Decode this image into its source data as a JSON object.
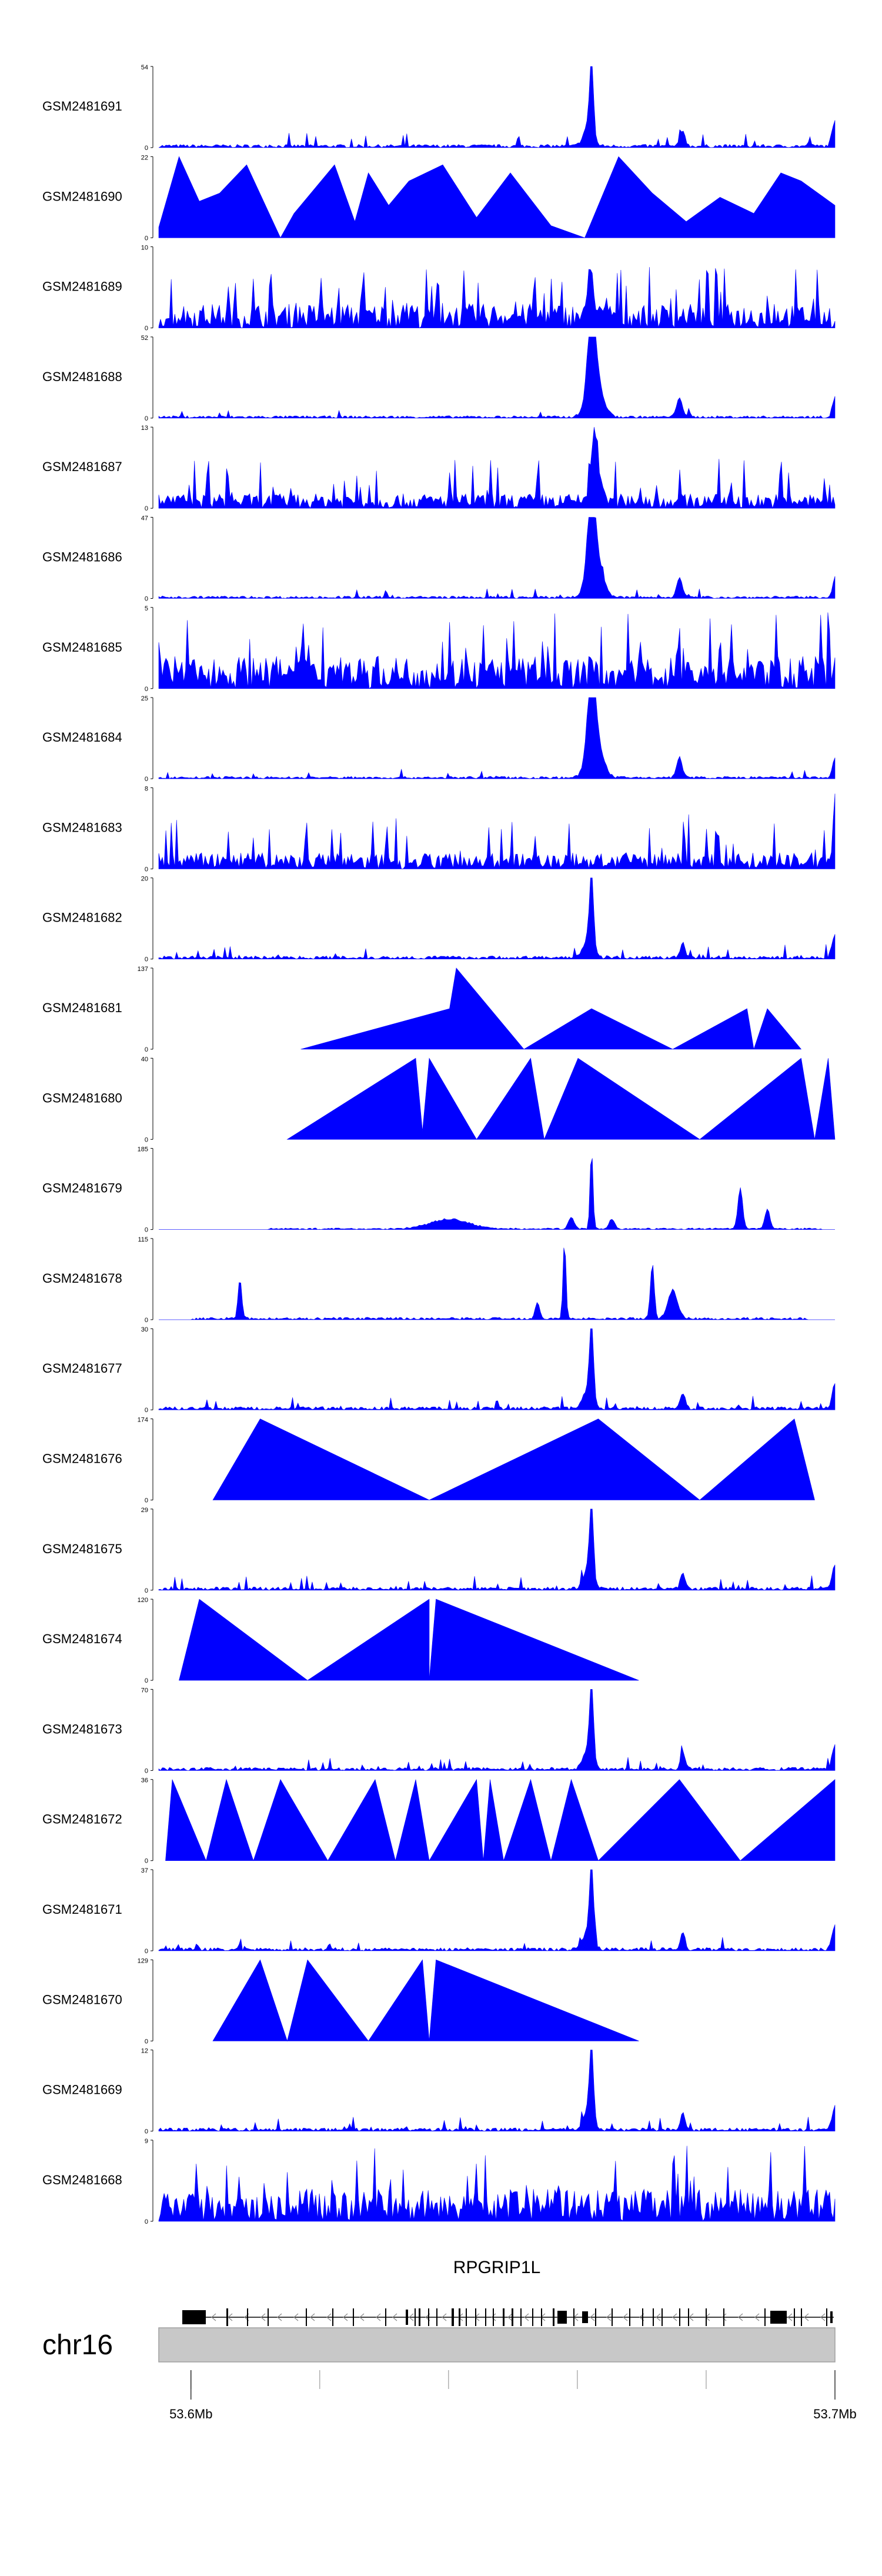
{
  "chart_data": {
    "type": "area",
    "tracks": [
      {
        "name": "GSM2481691",
        "ymax": 54,
        "pattern": "peak"
      },
      {
        "name": "GSM2481690",
        "ymax": 22,
        "pattern": "triangles",
        "verts": [
          [
            0,
            0.13
          ],
          [
            0.03,
            1.0
          ],
          [
            0.06,
            0.45
          ],
          [
            0.09,
            0.55
          ],
          [
            0.13,
            0.9
          ],
          [
            0.18,
            0.0
          ],
          [
            0.2,
            0.3
          ],
          [
            0.26,
            0.9
          ],
          [
            0.29,
            0.2
          ],
          [
            0.31,
            0.8
          ],
          [
            0.34,
            0.4
          ],
          [
            0.37,
            0.7
          ],
          [
            0.42,
            0.9
          ],
          [
            0.47,
            0.25
          ],
          [
            0.52,
            0.8
          ],
          [
            0.58,
            0.15
          ],
          [
            0.63,
            0.0
          ],
          [
            0.68,
            1.0
          ],
          [
            0.73,
            0.55
          ],
          [
            0.78,
            0.2
          ],
          [
            0.83,
            0.5
          ],
          [
            0.88,
            0.3
          ],
          [
            0.92,
            0.8
          ],
          [
            0.95,
            0.7
          ],
          [
            1.0,
            0.4
          ]
        ]
      },
      {
        "name": "GSM2481689",
        "ymax": 10,
        "pattern": "noise_high"
      },
      {
        "name": "GSM2481688",
        "ymax": 52,
        "pattern": "peak_big"
      },
      {
        "name": "GSM2481687",
        "ymax": 13,
        "pattern": "noise_mid_peak"
      },
      {
        "name": "GSM2481686",
        "ymax": 47,
        "pattern": "peak_big"
      },
      {
        "name": "GSM2481685",
        "ymax": 5,
        "pattern": "noise_full"
      },
      {
        "name": "GSM2481684",
        "ymax": 25,
        "pattern": "peak_big"
      },
      {
        "name": "GSM2481683",
        "ymax": 8,
        "pattern": "noise_mid"
      },
      {
        "name": "GSM2481682",
        "ymax": 20,
        "pattern": "peak"
      },
      {
        "name": "GSM2481681",
        "ymax": 137,
        "pattern": "triangles",
        "verts": [
          [
            0.21,
            0.0
          ],
          [
            0.43,
            0.5
          ],
          [
            0.44,
            1.0
          ],
          [
            0.54,
            0.0
          ],
          [
            0.64,
            0.5
          ],
          [
            0.76,
            0.0
          ],
          [
            0.87,
            0.5
          ],
          [
            0.88,
            0.0
          ],
          [
            0.9,
            0.5
          ],
          [
            0.95,
            0.0
          ]
        ]
      },
      {
        "name": "GSM2481680",
        "ymax": 40,
        "pattern": "triangles",
        "verts": [
          [
            0.19,
            0.0
          ],
          [
            0.38,
            1.0
          ],
          [
            0.39,
            0.1
          ],
          [
            0.4,
            1.0
          ],
          [
            0.47,
            0.0
          ],
          [
            0.55,
            1.0
          ],
          [
            0.57,
            0.0
          ],
          [
            0.62,
            1.0
          ],
          [
            0.8,
            0.0
          ],
          [
            0.95,
            1.0
          ],
          [
            0.97,
            0.0
          ],
          [
            0.99,
            1.0
          ],
          [
            1.0,
            0.0
          ]
        ]
      },
      {
        "name": "GSM2481679",
        "ymax": 185,
        "pattern": "sparse_peaks"
      },
      {
        "name": "GSM2481678",
        "ymax": 115,
        "pattern": "sparse_peaks2"
      },
      {
        "name": "GSM2481677",
        "ymax": 30,
        "pattern": "peak"
      },
      {
        "name": "GSM2481676",
        "ymax": 174,
        "pattern": "triangles",
        "verts": [
          [
            0.08,
            0.0
          ],
          [
            0.15,
            1.0
          ],
          [
            0.4,
            0.0
          ],
          [
            0.65,
            1.0
          ],
          [
            0.8,
            0.0
          ],
          [
            0.94,
            1.0
          ],
          [
            0.97,
            0.0
          ]
        ]
      },
      {
        "name": "GSM2481675",
        "ymax": 29,
        "pattern": "peak"
      },
      {
        "name": "GSM2481674",
        "ymax": 120,
        "pattern": "triangles",
        "verts": [
          [
            0.03,
            0.0
          ],
          [
            0.06,
            1.0
          ],
          [
            0.22,
            0.0
          ],
          [
            0.4,
            1.0
          ],
          [
            0.4,
            0.0
          ],
          [
            0.41,
            1.0
          ],
          [
            0.71,
            0.0
          ]
        ]
      },
      {
        "name": "GSM2481673",
        "ymax": 70,
        "pattern": "peak"
      },
      {
        "name": "GSM2481672",
        "ymax": 36,
        "pattern": "triangles",
        "verts": [
          [
            0.01,
            0.0
          ],
          [
            0.02,
            1.0
          ],
          [
            0.07,
            0.0
          ],
          [
            0.1,
            1.0
          ],
          [
            0.14,
            0.0
          ],
          [
            0.18,
            1.0
          ],
          [
            0.25,
            0.0
          ],
          [
            0.32,
            1.0
          ],
          [
            0.35,
            0.0
          ],
          [
            0.38,
            1.0
          ],
          [
            0.4,
            0.0
          ],
          [
            0.47,
            1.0
          ],
          [
            0.48,
            0.0
          ],
          [
            0.49,
            1.0
          ],
          [
            0.51,
            0.0
          ],
          [
            0.55,
            1.0
          ],
          [
            0.58,
            0.0
          ],
          [
            0.61,
            1.0
          ],
          [
            0.65,
            0.0
          ],
          [
            0.77,
            1.0
          ],
          [
            0.86,
            0.0
          ],
          [
            1.0,
            1.0
          ]
        ]
      },
      {
        "name": "GSM2481671",
        "ymax": 37,
        "pattern": "peak"
      },
      {
        "name": "GSM2481670",
        "ymax": 129,
        "pattern": "triangles",
        "verts": [
          [
            0.08,
            0.0
          ],
          [
            0.15,
            1.0
          ],
          [
            0.19,
            0.0
          ],
          [
            0.22,
            1.0
          ],
          [
            0.31,
            0.0
          ],
          [
            0.39,
            1.0
          ],
          [
            0.4,
            0.0
          ],
          [
            0.41,
            1.0
          ],
          [
            0.71,
            0.0
          ]
        ]
      },
      {
        "name": "GSM2481669",
        "ymax": 12,
        "pattern": "peak"
      },
      {
        "name": "GSM2481668",
        "ymax": 9,
        "pattern": "noise_full"
      }
    ],
    "gene": {
      "name": "RPGRIP1L"
    },
    "chromosome": "chr16",
    "xlim": [
      53.595,
      53.7
    ],
    "x_ticks": [
      53.6,
      53.7
    ],
    "x_tick_labels": [
      "53.6Mb",
      "53.7Mb"
    ],
    "colors": {
      "signal": "#0000ff",
      "axis": "#000000",
      "ideogram": "#c8c8c8"
    }
  }
}
